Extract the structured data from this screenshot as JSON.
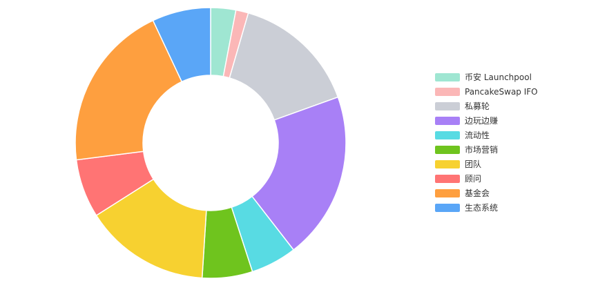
{
  "chart_data": {
    "type": "pie",
    "donut": true,
    "legend_position": "right",
    "slice_border_color": "#ffffff",
    "legend_text_color": "#333333",
    "series": [
      {
        "name": "币安 Launchpool",
        "value": 3,
        "color": "#9fe6d2"
      },
      {
        "name": "PancakeSwap IFO",
        "value": 1.5,
        "color": "#fbb7b7"
      },
      {
        "name": "私募轮",
        "value": 15,
        "color": "#cbced6"
      },
      {
        "name": "边玩边赚",
        "value": 20,
        "color": "#a880f6"
      },
      {
        "name": "流动性",
        "value": 5.5,
        "color": "#58dbe3"
      },
      {
        "name": "市场营销",
        "value": 6,
        "color": "#6fc41e"
      },
      {
        "name": "团队",
        "value": 15,
        "color": "#f7d130"
      },
      {
        "name": "顾问",
        "value": 7,
        "color": "#ff7474"
      },
      {
        "name": "基金会",
        "value": 20,
        "color": "#fe9f3f"
      },
      {
        "name": "生态系统",
        "value": 7,
        "color": "#5aa6f7"
      }
    ]
  }
}
